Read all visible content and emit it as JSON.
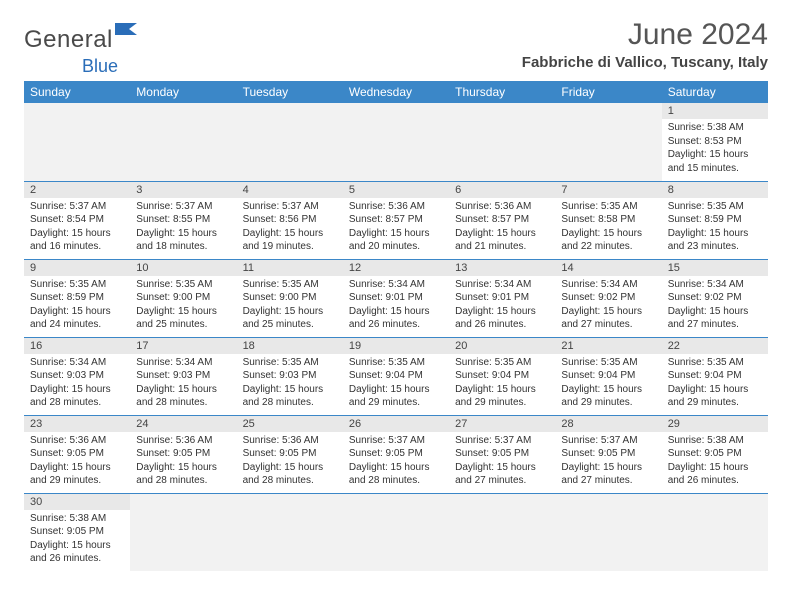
{
  "logo": {
    "general": "General",
    "blue": "Blue"
  },
  "title": "June 2024",
  "location": "Fabbriche di Vallico, Tuscany, Italy",
  "columns": [
    "Sunday",
    "Monday",
    "Tuesday",
    "Wednesday",
    "Thursday",
    "Friday",
    "Saturday"
  ],
  "colors": {
    "header_bg": "#3b87c8",
    "header_text": "#ffffff",
    "daynum_bg": "#e8e8e8",
    "border": "#3b87c8",
    "logo_blue": "#2a6db8",
    "body_text": "#333333"
  },
  "fonts": {
    "title_size_pt": 30,
    "location_size_pt": 15,
    "header_size_pt": 12,
    "daynum_size_pt": 11,
    "body_size_pt": 10
  },
  "first_weekday_index": 6,
  "days": [
    {
      "n": 1,
      "sunrise": "5:38 AM",
      "sunset": "8:53 PM",
      "daylight": "15 hours and 15 minutes."
    },
    {
      "n": 2,
      "sunrise": "5:37 AM",
      "sunset": "8:54 PM",
      "daylight": "15 hours and 16 minutes."
    },
    {
      "n": 3,
      "sunrise": "5:37 AM",
      "sunset": "8:55 PM",
      "daylight": "15 hours and 18 minutes."
    },
    {
      "n": 4,
      "sunrise": "5:37 AM",
      "sunset": "8:56 PM",
      "daylight": "15 hours and 19 minutes."
    },
    {
      "n": 5,
      "sunrise": "5:36 AM",
      "sunset": "8:57 PM",
      "daylight": "15 hours and 20 minutes."
    },
    {
      "n": 6,
      "sunrise": "5:36 AM",
      "sunset": "8:57 PM",
      "daylight": "15 hours and 21 minutes."
    },
    {
      "n": 7,
      "sunrise": "5:35 AM",
      "sunset": "8:58 PM",
      "daylight": "15 hours and 22 minutes."
    },
    {
      "n": 8,
      "sunrise": "5:35 AM",
      "sunset": "8:59 PM",
      "daylight": "15 hours and 23 minutes."
    },
    {
      "n": 9,
      "sunrise": "5:35 AM",
      "sunset": "8:59 PM",
      "daylight": "15 hours and 24 minutes."
    },
    {
      "n": 10,
      "sunrise": "5:35 AM",
      "sunset": "9:00 PM",
      "daylight": "15 hours and 25 minutes."
    },
    {
      "n": 11,
      "sunrise": "5:35 AM",
      "sunset": "9:00 PM",
      "daylight": "15 hours and 25 minutes."
    },
    {
      "n": 12,
      "sunrise": "5:34 AM",
      "sunset": "9:01 PM",
      "daylight": "15 hours and 26 minutes."
    },
    {
      "n": 13,
      "sunrise": "5:34 AM",
      "sunset": "9:01 PM",
      "daylight": "15 hours and 26 minutes."
    },
    {
      "n": 14,
      "sunrise": "5:34 AM",
      "sunset": "9:02 PM",
      "daylight": "15 hours and 27 minutes."
    },
    {
      "n": 15,
      "sunrise": "5:34 AM",
      "sunset": "9:02 PM",
      "daylight": "15 hours and 27 minutes."
    },
    {
      "n": 16,
      "sunrise": "5:34 AM",
      "sunset": "9:03 PM",
      "daylight": "15 hours and 28 minutes."
    },
    {
      "n": 17,
      "sunrise": "5:34 AM",
      "sunset": "9:03 PM",
      "daylight": "15 hours and 28 minutes."
    },
    {
      "n": 18,
      "sunrise": "5:35 AM",
      "sunset": "9:03 PM",
      "daylight": "15 hours and 28 minutes."
    },
    {
      "n": 19,
      "sunrise": "5:35 AM",
      "sunset": "9:04 PM",
      "daylight": "15 hours and 29 minutes."
    },
    {
      "n": 20,
      "sunrise": "5:35 AM",
      "sunset": "9:04 PM",
      "daylight": "15 hours and 29 minutes."
    },
    {
      "n": 21,
      "sunrise": "5:35 AM",
      "sunset": "9:04 PM",
      "daylight": "15 hours and 29 minutes."
    },
    {
      "n": 22,
      "sunrise": "5:35 AM",
      "sunset": "9:04 PM",
      "daylight": "15 hours and 29 minutes."
    },
    {
      "n": 23,
      "sunrise": "5:36 AM",
      "sunset": "9:05 PM",
      "daylight": "15 hours and 29 minutes."
    },
    {
      "n": 24,
      "sunrise": "5:36 AM",
      "sunset": "9:05 PM",
      "daylight": "15 hours and 28 minutes."
    },
    {
      "n": 25,
      "sunrise": "5:36 AM",
      "sunset": "9:05 PM",
      "daylight": "15 hours and 28 minutes."
    },
    {
      "n": 26,
      "sunrise": "5:37 AM",
      "sunset": "9:05 PM",
      "daylight": "15 hours and 28 minutes."
    },
    {
      "n": 27,
      "sunrise": "5:37 AM",
      "sunset": "9:05 PM",
      "daylight": "15 hours and 27 minutes."
    },
    {
      "n": 28,
      "sunrise": "5:37 AM",
      "sunset": "9:05 PM",
      "daylight": "15 hours and 27 minutes."
    },
    {
      "n": 29,
      "sunrise": "5:38 AM",
      "sunset": "9:05 PM",
      "daylight": "15 hours and 26 minutes."
    },
    {
      "n": 30,
      "sunrise": "5:38 AM",
      "sunset": "9:05 PM",
      "daylight": "15 hours and 26 minutes."
    }
  ],
  "labels": {
    "sunrise": "Sunrise:",
    "sunset": "Sunset:",
    "daylight": "Daylight:"
  }
}
